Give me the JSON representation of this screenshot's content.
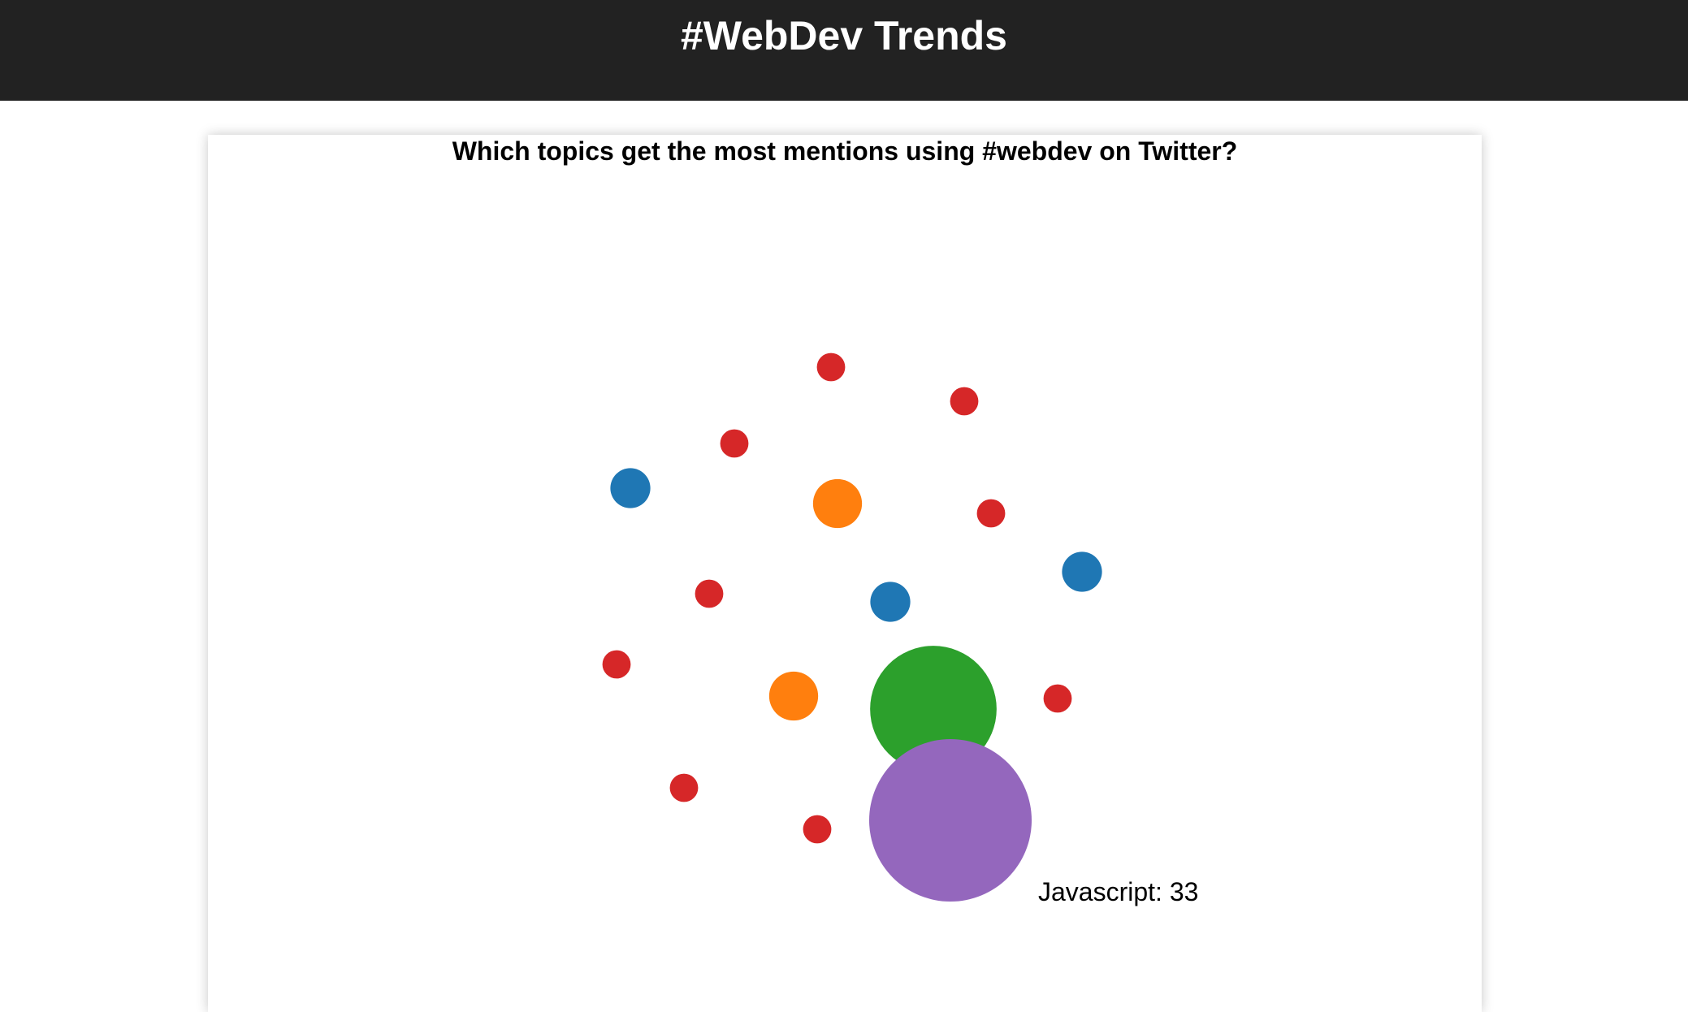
{
  "header": {
    "title": "#WebDev Trends"
  },
  "chart_data": {
    "type": "bubble",
    "title": "Which topics get the most mentions using #webdev on Twitter?",
    "colors": {
      "red": "#d62728",
      "blue": "#1f77b4",
      "orange": "#ff7f0e",
      "green": "#2ca02c",
      "purple": "#9467bd"
    },
    "hover_label": {
      "topic": "Javascript",
      "value": 33,
      "text": "Javascript: 33"
    },
    "bubbles": [
      {
        "color": "red",
        "value": 1
      },
      {
        "color": "red",
        "value": 1
      },
      {
        "color": "red",
        "value": 1
      },
      {
        "color": "blue",
        "value": 2
      },
      {
        "color": "orange",
        "value": 3
      },
      {
        "color": "red",
        "value": 1
      },
      {
        "color": "blue",
        "value": 2
      },
      {
        "color": "red",
        "value": 1
      },
      {
        "color": "blue",
        "value": 2
      },
      {
        "color": "red",
        "value": 1
      },
      {
        "color": "orange",
        "value": 3
      },
      {
        "color": "green",
        "value": 20
      },
      {
        "color": "red",
        "value": 1
      },
      {
        "color": "red",
        "value": 1
      },
      {
        "color": "red",
        "value": 1
      },
      {
        "color": "purple",
        "value": 33,
        "topic": "Javascript"
      }
    ]
  }
}
